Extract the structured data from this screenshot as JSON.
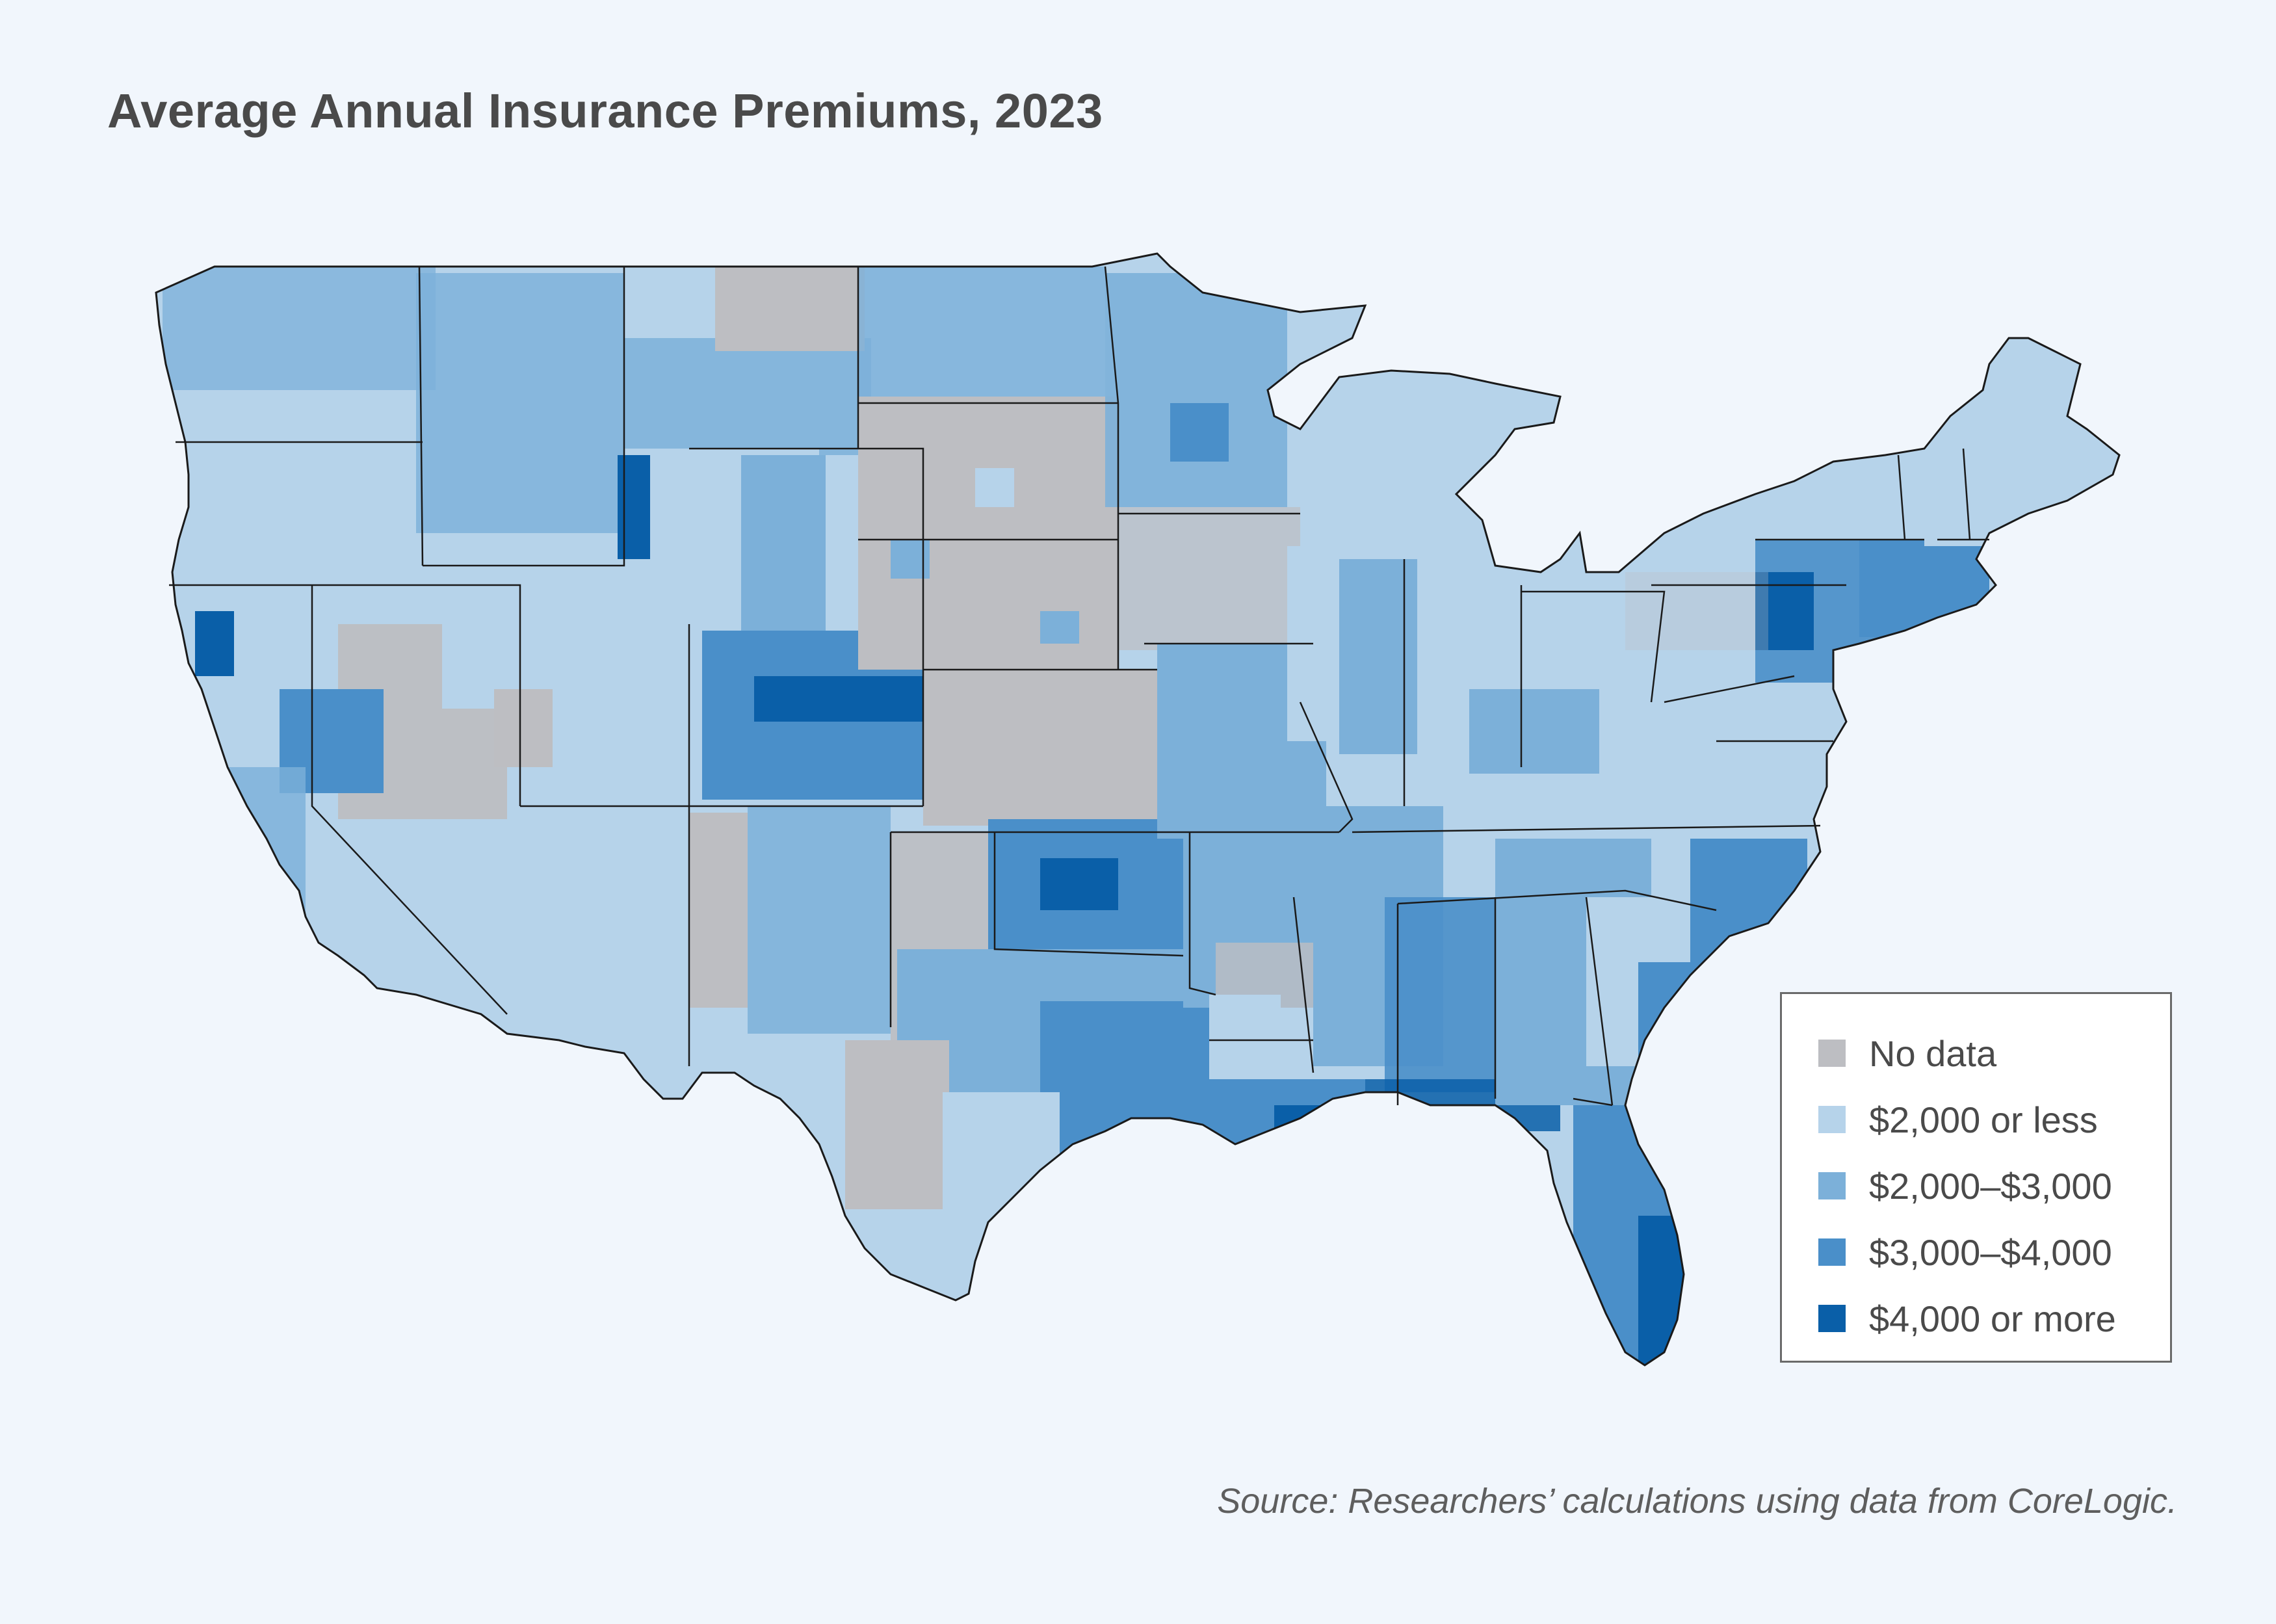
{
  "title": "Average Annual Insurance Premiums, 2023",
  "source": "Source: Researchers’ calculations using data from CoreLogic.",
  "legend": {
    "items": [
      {
        "label": "No data",
        "color": "#bdbec2"
      },
      {
        "label": "$2,000 or less",
        "color": "#b6d3ea"
      },
      {
        "label": "$2,000–$3,000",
        "color": "#7cb0d9"
      },
      {
        "label": "$3,000–$4,000",
        "color": "#4a8fc9"
      },
      {
        "label": "$4,000 or more",
        "color": "#0a5fa8"
      }
    ]
  },
  "colors": {
    "background": "#f1f6fc",
    "no_data": "#bdbec2",
    "tier1": "#b6d3ea",
    "tier2": "#7cb0d9",
    "tier3": "#4a8fc9",
    "tier4": "#0a5fa8",
    "border": "#1a1a1a"
  }
}
